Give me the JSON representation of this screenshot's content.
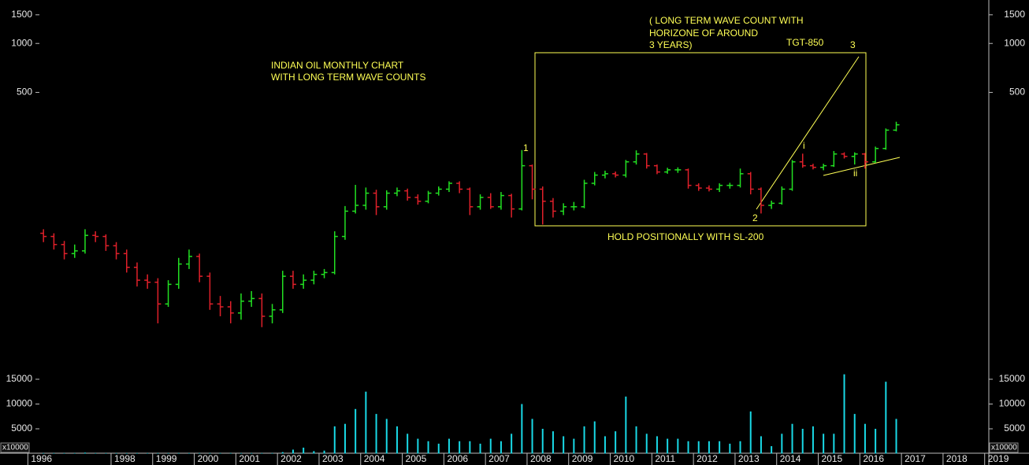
{
  "chart_data": [
    {
      "type": "ohlc",
      "log": true,
      "up_color": "#22e022",
      "down_color": "#e0202a",
      "xlim": [
        1995.33,
        2019.1
      ],
      "xticks": [
        1996,
        1998,
        1999,
        2000,
        2001,
        2002,
        2003,
        2004,
        2005,
        2006,
        2007,
        2008,
        2009,
        2010,
        2011,
        2012,
        2013,
        2014,
        2015,
        2016,
        2017,
        2018,
        2019
      ],
      "ylim": [
        11,
        1850
      ],
      "yticks": [
        500,
        1000,
        1500
      ],
      "x": [
        1996.375,
        1996.625,
        1996.875,
        1997.125,
        1997.375,
        1997.625,
        1997.875,
        1998.125,
        1998.375,
        1998.625,
        1998.875,
        1999.125,
        1999.375,
        1999.625,
        1999.875,
        2000.125,
        2000.375,
        2000.625,
        2000.875,
        2001.125,
        2001.375,
        2001.625,
        2001.875,
        2002.125,
        2002.375,
        2002.625,
        2002.875,
        2003.125,
        2003.375,
        2003.625,
        2003.875,
        2004.125,
        2004.375,
        2004.625,
        2004.875,
        2005.125,
        2005.375,
        2005.625,
        2005.875,
        2006.125,
        2006.375,
        2006.625,
        2006.875,
        2007.125,
        2007.375,
        2007.625,
        2007.875,
        2008.125,
        2008.375,
        2008.625,
        2008.875,
        2009.125,
        2009.375,
        2009.625,
        2009.875,
        2010.125,
        2010.375,
        2010.625,
        2010.875,
        2011.125,
        2011.375,
        2011.625,
        2011.875,
        2012.125,
        2012.375,
        2012.625,
        2012.875,
        2013.125,
        2013.375,
        2013.625,
        2013.875,
        2014.125,
        2014.375,
        2014.625,
        2014.875,
        2015.125,
        2015.375,
        2015.625,
        2015.875,
        2016.125,
        2016.375,
        2016.625,
        2016.875
      ],
      "open": [
        68,
        65,
        58,
        51,
        53,
        66,
        65,
        57,
        51,
        42,
        35,
        34,
        25,
        33,
        44,
        49,
        37,
        25,
        24,
        22,
        26,
        27,
        21,
        23,
        37,
        33,
        35,
        38,
        39,
        65,
        93,
        101,
        120,
        99,
        120,
        124,
        113,
        107,
        120,
        127,
        138,
        127,
        99,
        113,
        99,
        116,
        96,
        177,
        127,
        107,
        93,
        99,
        99,
        138,
        155,
        158,
        155,
        187,
        209,
        177,
        162,
        167,
        167,
        134,
        129,
        127,
        134,
        134,
        158,
        127,
        101,
        104,
        127,
        187,
        177,
        173,
        177,
        209,
        202,
        209,
        187,
        226,
        293
      ],
      "high": [
        72,
        68,
        61,
        58,
        72,
        70,
        67,
        60,
        54,
        45,
        38,
        36,
        35,
        48,
        54,
        51,
        39,
        28,
        26,
        29,
        30,
        29,
        25,
        40,
        40,
        38,
        40,
        41,
        70,
        100,
        135,
        130,
        126,
        125,
        130,
        128,
        118,
        124,
        132,
        142,
        142,
        130,
        118,
        120,
        122,
        119,
        221,
        180,
        132,
        112,
        104,
        106,
        145,
        162,
        165,
        163,
        192,
        220,
        212,
        180,
        172,
        173,
        170,
        138,
        134,
        138,
        139,
        170,
        162,
        130,
        108,
        132,
        192,
        210,
        182,
        182,
        218,
        214,
        214,
        212,
        232,
        300,
        330
      ],
      "low": [
        60,
        54,
        47,
        48,
        51,
        60,
        53,
        47,
        39,
        32,
        31,
        19,
        24,
        31,
        41,
        34,
        23,
        21,
        19,
        20,
        24,
        18,
        19,
        22,
        31,
        31,
        33,
        36,
        38,
        62,
        90,
        95,
        88,
        95,
        115,
        108,
        102,
        104,
        116,
        122,
        120,
        88,
        95,
        96,
        95,
        85,
        94,
        110,
        77,
        85,
        88,
        94,
        97,
        134,
        148,
        150,
        150,
        180,
        170,
        157,
        158,
        160,
        128,
        124,
        123,
        122,
        128,
        130,
        118,
        90,
        96,
        102,
        124,
        172,
        168,
        166,
        174,
        196,
        180,
        170,
        184,
        222,
        288
      ],
      "close": [
        65,
        58,
        51,
        53,
        66,
        65,
        57,
        51,
        42,
        35,
        34,
        25,
        33,
        44,
        49,
        37,
        25,
        24,
        22,
        26,
        27,
        21,
        23,
        37,
        33,
        35,
        38,
        39,
        65,
        93,
        101,
        120,
        99,
        120,
        124,
        113,
        107,
        120,
        127,
        138,
        127,
        99,
        113,
        99,
        116,
        96,
        177,
        127,
        107,
        93,
        99,
        99,
        138,
        155,
        158,
        155,
        187,
        209,
        177,
        162,
        167,
        167,
        134,
        129,
        127,
        134,
        134,
        158,
        127,
        101,
        104,
        127,
        187,
        177,
        173,
        177,
        209,
        202,
        209,
        187,
        226,
        293,
        316
      ],
      "annotations": [
        "INDIAN OIL MONTHLY CHART",
        "WITH LONG TERM WAVE COUNTS",
        "( LONG TERM WAVE COUNT WITH",
        "HORIZONE OF AROUND",
        "3 YEARS)",
        "TGT-850",
        "3",
        "1",
        "2",
        "i",
        "ii",
        "HOLD POSITIONALLY WITH SL-200"
      ]
    },
    {
      "type": "bar",
      "color": "#19d9e6",
      "unit_label": "x10000",
      "ylim": [
        0,
        17700
      ],
      "yticks": [
        5000,
        10000,
        15000
      ],
      "values": [
        100,
        100,
        100,
        100,
        200,
        100,
        100,
        100,
        100,
        100,
        100,
        100,
        100,
        100,
        100,
        100,
        100,
        100,
        100,
        100,
        100,
        100,
        100,
        300,
        800,
        1200,
        500,
        600,
        5500,
        6000,
        9000,
        12500,
        8000,
        7000,
        5500,
        4000,
        3000,
        2500,
        2000,
        3000,
        2500,
        2500,
        2000,
        3000,
        2500,
        4000,
        10000,
        7000,
        5000,
        4500,
        3500,
        3000,
        5500,
        6500,
        3500,
        4500,
        11500,
        5500,
        4000,
        3500,
        3000,
        3000,
        2500,
        2500,
        2500,
        2500,
        2000,
        2500,
        8500,
        3500,
        1500,
        4000,
        6000,
        5000,
        5500,
        4000,
        4000,
        16000,
        8000,
        6000,
        5000,
        14500,
        7000
      ]
    }
  ]
}
